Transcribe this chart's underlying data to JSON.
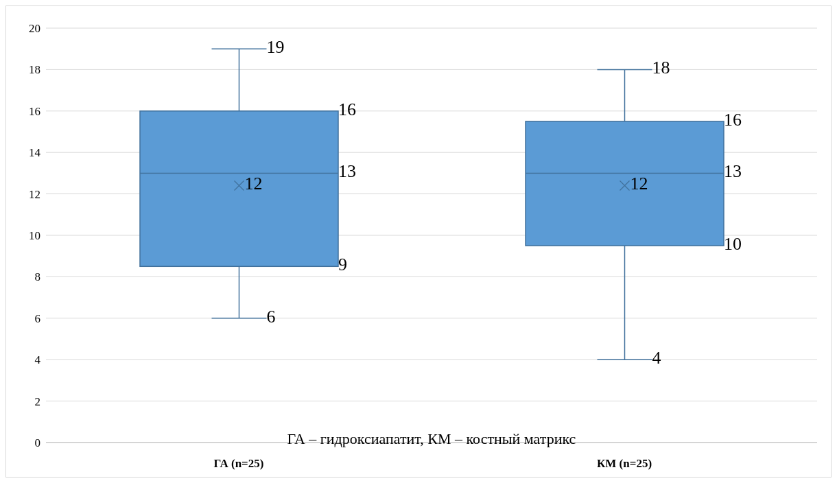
{
  "chart_data": {
    "type": "box",
    "categories": [
      "ГА (n=25)",
      "КМ (n=25)"
    ],
    "boxes": [
      {
        "low": 6,
        "q1": 8.5,
        "median": 13,
        "q3": 16,
        "high": 19,
        "mean": 12.4
      },
      {
        "low": 4,
        "q1": 9.5,
        "median": 13,
        "q3": 15.5,
        "high": 18,
        "mean": 12.4
      }
    ],
    "color": "#5b9bd5",
    "ylim": [
      0,
      20
    ],
    "yticks": [
      0,
      2,
      4,
      6,
      8,
      10,
      12,
      14,
      16,
      18,
      20
    ],
    "grid": "y",
    "annotations": [
      "19",
      "16",
      "13",
      "12",
      "9",
      "6",
      "18",
      "16",
      "13",
      "12",
      "10",
      "4",
      "ГА – гидроксиапатит, КМ – костный матрикс"
    ]
  }
}
